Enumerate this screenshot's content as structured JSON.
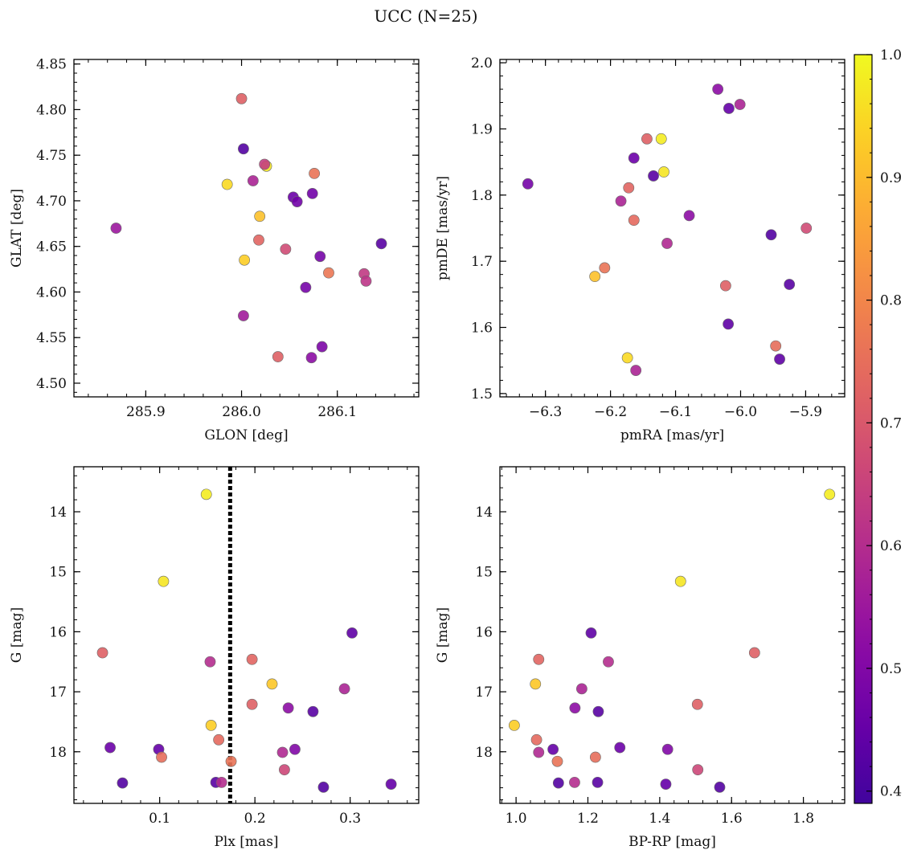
{
  "figure_title": "UCC (N=25)",
  "chart_data": [
    {
      "type": "scatter",
      "panel": "top-left",
      "xlabel": "GLON [deg]",
      "ylabel": "GLAT [deg]",
      "xlim": [
        285.825,
        286.185
      ],
      "ylim": [
        4.485,
        4.855
      ],
      "xticks": [
        285.9,
        286.0,
        286.1
      ],
      "xtick_labels": [
        "285.9",
        "286.0",
        "286.1"
      ],
      "yticks": [
        4.5,
        4.55,
        4.6,
        4.65,
        4.7,
        4.75,
        4.8,
        4.85
      ],
      "ytick_labels": [
        "4.50",
        "4.55",
        "4.60",
        "4.65",
        "4.70",
        "4.75",
        "4.80",
        "4.85"
      ],
      "x": [
        286.0,
        286.002,
        286.026,
        285.985,
        286.024,
        286.012,
        286.054,
        286.058,
        286.074,
        286.076,
        286.019,
        285.869,
        286.018,
        286.046,
        286.003,
        286.146,
        286.082,
        286.091,
        286.128,
        286.13,
        286.067,
        286.002,
        286.084,
        286.038,
        286.073
      ],
      "y": [
        4.812,
        4.757,
        4.738,
        4.718,
        4.74,
        4.722,
        4.704,
        4.699,
        4.708,
        4.73,
        4.683,
        4.67,
        4.657,
        4.647,
        4.635,
        4.653,
        4.639,
        4.621,
        4.62,
        4.612,
        4.605,
        4.574,
        4.54,
        4.529,
        4.528
      ],
      "c": [
        0.72,
        0.42,
        0.97,
        0.95,
        0.64,
        0.58,
        0.46,
        0.47,
        0.47,
        0.76,
        0.91,
        0.55,
        0.73,
        0.67,
        0.93,
        0.43,
        0.48,
        0.77,
        0.63,
        0.62,
        0.48,
        0.56,
        0.49,
        0.72,
        0.52
      ]
    },
    {
      "type": "scatter",
      "panel": "top-right",
      "xlabel": "pmRA [mas/yr]",
      "ylabel": "pmDE [mas/yr]",
      "xlim": [
        -6.37,
        -5.84
      ],
      "ylim": [
        1.495,
        2.005
      ],
      "xticks": [
        -6.3,
        -6.2,
        -6.1,
        -6.0,
        -5.9
      ],
      "xtick_labels": [
        "−6.3",
        "−6.2",
        "−6.1",
        "−6.0",
        "−5.9"
      ],
      "yticks": [
        1.5,
        1.6,
        1.7,
        1.8,
        1.9,
        2.0
      ],
      "ytick_labels": [
        "1.5",
        "1.6",
        "1.7",
        "1.8",
        "1.9",
        "2.0"
      ],
      "x": [
        -6.035,
        -6.018,
        -6.001,
        -6.144,
        -6.122,
        -6.164,
        -6.118,
        -6.134,
        -6.327,
        -6.172,
        -6.184,
        -6.079,
        -6.164,
        -5.953,
        -6.113,
        -5.899,
        -6.209,
        -6.224,
        -5.925,
        -6.023,
        -6.019,
        -6.174,
        -5.946,
        -6.161,
        -5.94
      ],
      "y": [
        1.96,
        1.931,
        1.937,
        1.885,
        1.885,
        1.856,
        1.835,
        1.829,
        1.817,
        1.811,
        1.791,
        1.769,
        1.762,
        1.74,
        1.727,
        1.75,
        1.69,
        1.677,
        1.665,
        1.663,
        1.605,
        1.554,
        1.572,
        1.535,
        1.552
      ],
      "c": [
        0.52,
        0.45,
        0.58,
        0.72,
        0.98,
        0.46,
        0.97,
        0.43,
        0.48,
        0.73,
        0.58,
        0.52,
        0.74,
        0.42,
        0.59,
        0.67,
        0.76,
        0.91,
        0.43,
        0.72,
        0.44,
        0.95,
        0.75,
        0.58,
        0.44
      ]
    },
    {
      "type": "scatter",
      "panel": "bottom-left",
      "xlabel": "Plx [mas]",
      "ylabel": "G [mag]",
      "xlim": [
        0.01,
        0.372
      ],
      "ylim": [
        18.86,
        13.25
      ],
      "y_inverted": true,
      "xticks": [
        0.1,
        0.2,
        0.3
      ],
      "xtick_labels": [
        "0.1",
        "0.2",
        "0.3"
      ],
      "yticks": [
        14,
        15,
        16,
        17,
        18
      ],
      "ytick_labels": [
        "14",
        "15",
        "16",
        "17",
        "18"
      ],
      "vline": 0.174,
      "x": [
        0.149,
        0.104,
        0.302,
        0.04,
        0.197,
        0.153,
        0.218,
        0.294,
        0.197,
        0.235,
        0.261,
        0.154,
        0.162,
        0.048,
        0.099,
        0.242,
        0.102,
        0.229,
        0.175,
        0.231,
        0.061,
        0.159,
        0.165,
        0.272,
        0.343
      ],
      "y": [
        13.71,
        15.16,
        16.02,
        16.35,
        16.46,
        16.5,
        16.87,
        16.95,
        17.21,
        17.27,
        17.33,
        17.56,
        17.8,
        17.93,
        17.96,
        17.96,
        18.09,
        18.01,
        18.16,
        18.3,
        18.52,
        18.51,
        18.51,
        18.59,
        18.54
      ],
      "c": [
        0.98,
        0.97,
        0.44,
        0.72,
        0.73,
        0.6,
        0.92,
        0.58,
        0.72,
        0.52,
        0.43,
        0.93,
        0.74,
        0.46,
        0.45,
        0.5,
        0.75,
        0.59,
        0.76,
        0.66,
        0.42,
        0.43,
        0.6,
        0.42,
        0.45
      ]
    },
    {
      "type": "scatter",
      "panel": "bottom-right",
      "xlabel": "BP-RP [mag]",
      "ylabel": "G [mag]",
      "xlim": [
        0.955,
        1.915
      ],
      "ylim": [
        18.86,
        13.25
      ],
      "y_inverted": true,
      "xticks": [
        1.0,
        1.2,
        1.4,
        1.6,
        1.8
      ],
      "xtick_labels": [
        "1.0",
        "1.2",
        "1.4",
        "1.6",
        "1.8"
      ],
      "yticks": [
        14,
        15,
        16,
        17,
        18
      ],
      "ytick_labels": [
        "14",
        "15",
        "16",
        "17",
        "18"
      ],
      "x": [
        1.873,
        1.458,
        1.209,
        1.664,
        1.063,
        1.257,
        1.054,
        1.183,
        1.505,
        1.164,
        1.229,
        0.995,
        1.057,
        1.289,
        1.103,
        1.422,
        1.063,
        1.221,
        1.115,
        1.506,
        1.118,
        1.227,
        1.163,
        1.417,
        1.567
      ],
      "y": [
        13.71,
        15.16,
        16.02,
        16.35,
        16.46,
        16.5,
        16.87,
        16.95,
        17.21,
        17.27,
        17.33,
        17.56,
        17.8,
        17.93,
        17.96,
        17.96,
        18.01,
        18.09,
        18.16,
        18.3,
        18.52,
        18.51,
        18.51,
        18.54,
        18.59
      ],
      "c": [
        0.98,
        0.97,
        0.44,
        0.72,
        0.73,
        0.6,
        0.92,
        0.58,
        0.72,
        0.52,
        0.43,
        0.93,
        0.74,
        0.46,
        0.45,
        0.5,
        0.59,
        0.75,
        0.76,
        0.66,
        0.42,
        0.43,
        0.6,
        0.45,
        0.42
      ]
    }
  ],
  "colorbar": {
    "colormap": "plasma",
    "range": [
      0.39,
      1.0
    ],
    "ticks": [
      0.4,
      0.5,
      0.6,
      0.7,
      0.8,
      0.9,
      1.0
    ],
    "tick_labels": [
      "0.4",
      "0.5",
      "0.6",
      "0.7",
      "0.8",
      "0.9",
      "1.0"
    ]
  }
}
